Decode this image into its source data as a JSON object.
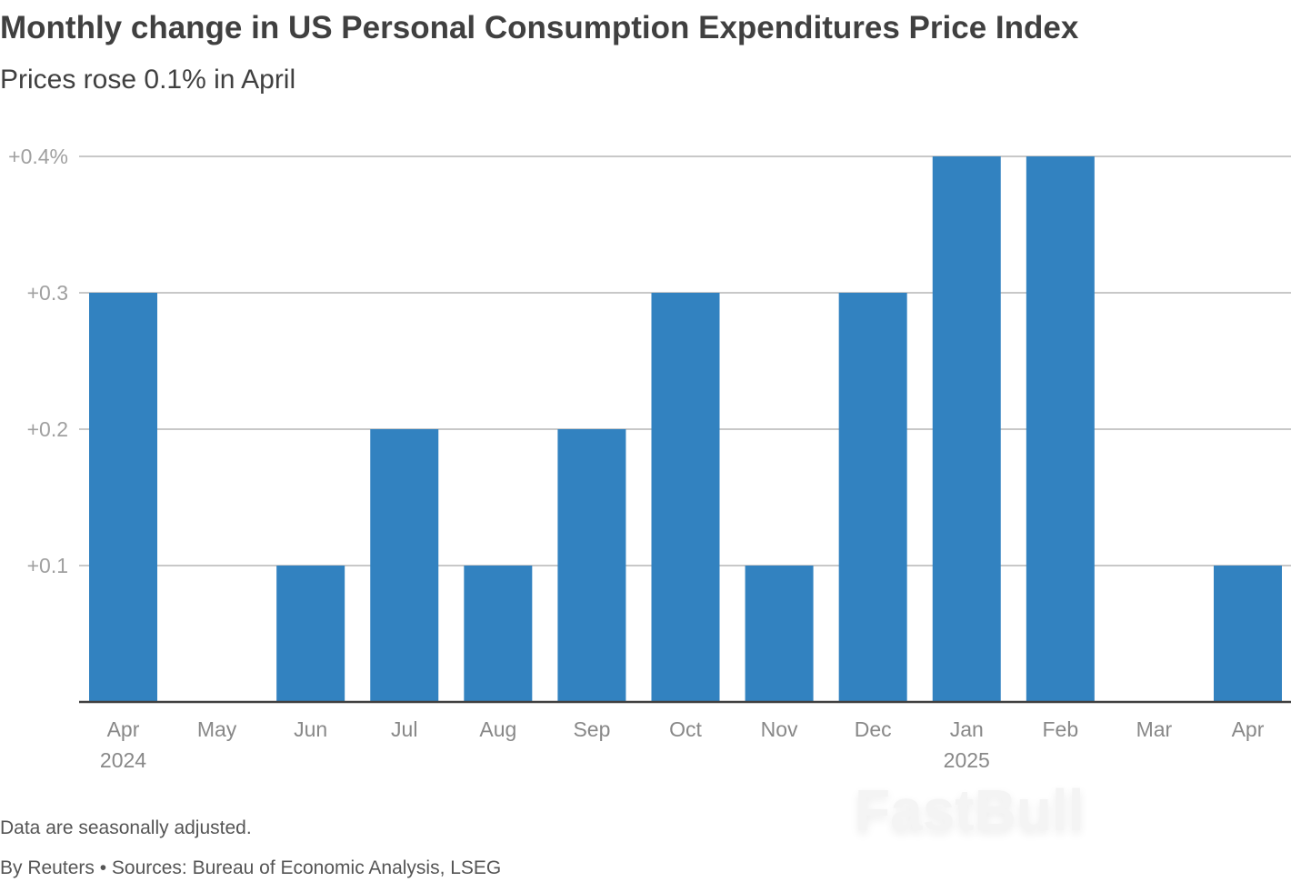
{
  "chart_data": {
    "type": "bar",
    "title": "Monthly change in US Personal Consumption Expenditures Price Index",
    "subtitle": "Prices rose 0.1% in April",
    "categories": [
      "Apr 2024",
      "May",
      "Jun",
      "Jul",
      "Aug",
      "Sep",
      "Oct",
      "Nov",
      "Dec",
      "Jan 2025",
      "Feb",
      "Mar",
      "Apr"
    ],
    "tick_labels": [
      {
        "month": "Apr",
        "year": "2024"
      },
      {
        "month": "May"
      },
      {
        "month": "Jun"
      },
      {
        "month": "Jul"
      },
      {
        "month": "Aug"
      },
      {
        "month": "Sep"
      },
      {
        "month": "Oct"
      },
      {
        "month": "Nov"
      },
      {
        "month": "Dec"
      },
      {
        "month": "Jan",
        "year": "2025"
      },
      {
        "month": "Feb"
      },
      {
        "month": "Mar"
      },
      {
        "month": "Apr"
      }
    ],
    "values": [
      0.3,
      0.0,
      0.1,
      0.2,
      0.1,
      0.2,
      0.3,
      0.1,
      0.3,
      0.4,
      0.4,
      0.0,
      0.1
    ],
    "ylim": [
      0,
      0.4
    ],
    "yticks": [
      0.1,
      0.2,
      0.3,
      0.4
    ],
    "ytick_labels": [
      "+0.1",
      "+0.2",
      "+0.3",
      "+0.4%"
    ],
    "xlabel": "",
    "ylabel": "",
    "grid": true,
    "colors": {
      "bar": "#3282c0",
      "grid": "#c8c8c8",
      "axis": "#404040",
      "tick_text": "#a0a0a0"
    }
  },
  "footer": {
    "note": "Data are seasonally adjusted.",
    "source": "By Reuters • Sources: Bureau of Economic Analysis, LSEG"
  },
  "watermark": "FastBull"
}
